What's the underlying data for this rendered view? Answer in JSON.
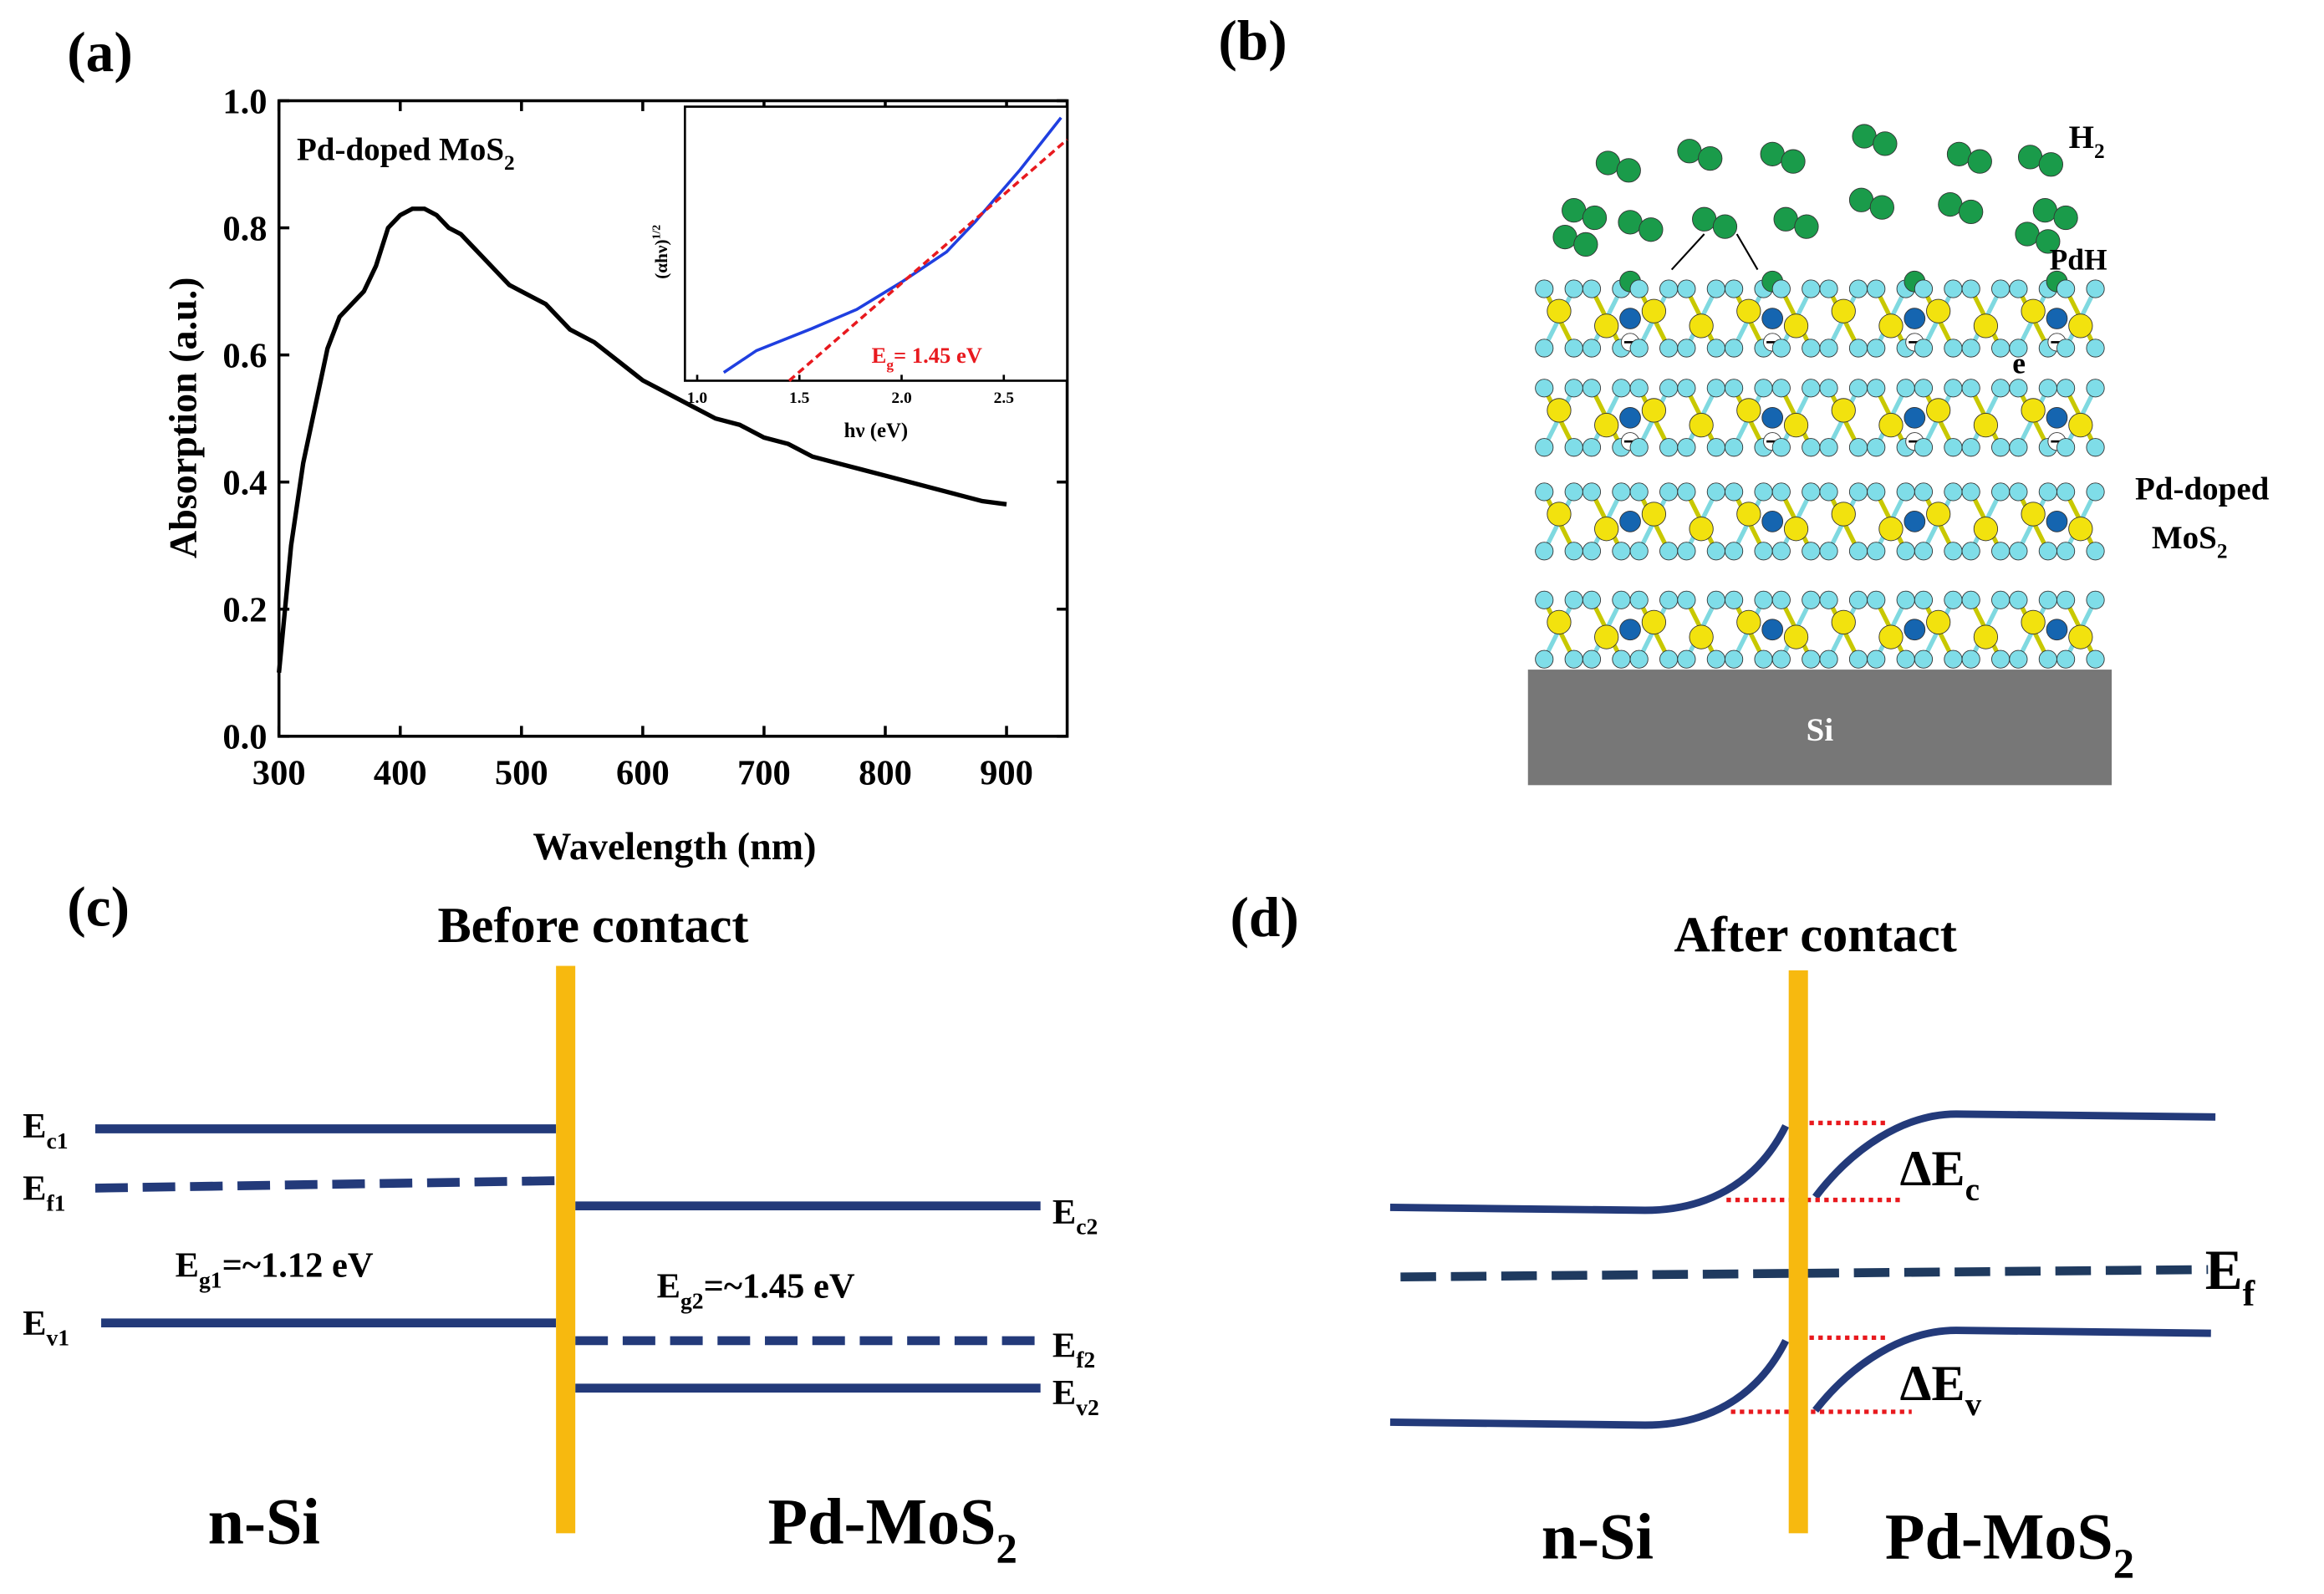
{
  "chart_data": [
    {
      "type": "line",
      "annotation": {
        "main": "Pd-doped MoS",
        "sub": "2"
      },
      "xlabel": "Wavelength (nm)",
      "ylabel": "Absorption (a.u.)",
      "xlim": [
        300,
        950
      ],
      "ylim": [
        0,
        1.0
      ],
      "xticks": [
        300,
        400,
        500,
        600,
        700,
        800,
        900
      ],
      "yticks": [
        {
          "value": 0,
          "label": "0.0"
        },
        0.2,
        0.4,
        0.6,
        0.8,
        {
          "value": 1,
          "label": "1.0"
        }
      ],
      "series": [
        {
          "color": "#000000",
          "x": [
            300,
            310,
            320,
            330,
            340,
            350,
            360,
            370,
            380,
            390,
            400,
            410,
            420,
            430,
            440,
            450,
            460,
            470,
            480,
            490,
            500,
            520,
            540,
            560,
            580,
            600,
            620,
            640,
            660,
            680,
            700,
            720,
            740,
            760,
            780,
            800,
            820,
            840,
            860,
            880,
            900
          ],
          "values": [
            0.1,
            0.3,
            0.43,
            0.52,
            0.61,
            0.66,
            0.68,
            0.7,
            0.74,
            0.8,
            0.82,
            0.83,
            0.83,
            0.82,
            0.8,
            0.79,
            0.77,
            0.75,
            0.73,
            0.71,
            0.7,
            0.68,
            0.64,
            0.62,
            0.59,
            0.56,
            0.54,
            0.52,
            0.5,
            0.49,
            0.47,
            0.46,
            0.44,
            0.43,
            0.42,
            0.41,
            0.4,
            0.39,
            0.38,
            0.37,
            0.365
          ]
        }
      ]
    },
    {
      "type": "line",
      "xlabel": "hν (eV)",
      "ylabel": {
        "main": "(αhν)",
        "sup": "1/2"
      },
      "annotation": {
        "main": "E",
        "sub": "g",
        "rest": "= 1.45 eV"
      },
      "xlim": [
        0.94,
        2.81
      ],
      "ylim": [
        0,
        1
      ],
      "xticks": [
        {
          "value": 1,
          "label": "1.0"
        },
        1.5,
        {
          "value": 2,
          "label": "2.0"
        },
        2.5
      ],
      "series": [
        {
          "color": "#1f3fe0",
          "x": [
            1.13,
            1.29,
            1.56,
            1.78,
            2.0,
            2.22,
            2.36,
            2.58,
            2.78
          ],
          "values": [
            0.03,
            0.11,
            0.19,
            0.26,
            0.36,
            0.47,
            0.58,
            0.77,
            0.96
          ]
        },
        {
          "color": "#e8191e",
          "line_style": "dashed",
          "x": [
            1.45,
            2.81
          ],
          "values": [
            0,
            0.88
          ]
        }
      ]
    }
  ],
  "panel_labels": [
    "(a)",
    "(b)",
    "(c)",
    "(d)"
  ],
  "diagram_b": {
    "molecule": {
      "main": "H",
      "sub": "2"
    },
    "adsorbed": "PdH",
    "electron": "e",
    "layer_label": [
      "Pd-doped",
      {
        "main": "MoS",
        "sub": "2"
      }
    ],
    "substrate": "Si"
  },
  "diagram_c": {
    "title": "Before contact",
    "levels": [
      {
        "main": "E",
        "sub": "c1"
      },
      {
        "main": "E",
        "sub": "f1"
      },
      {
        "main": "E",
        "sub": "v1"
      },
      {
        "main": "E",
        "sub": "c2"
      },
      {
        "main": "E",
        "sub": "f2"
      },
      {
        "main": "E",
        "sub": "v2"
      }
    ],
    "gaps": [
      {
        "main": "E",
        "sub": "g1",
        "rest": "=~1.12 eV"
      },
      {
        "main": "E",
        "sub": "g2",
        "rest": "=~1.45 eV"
      }
    ],
    "materials": [
      "n-Si",
      {
        "main": "Pd-MoS",
        "sub": "2"
      }
    ]
  },
  "diagram_d": {
    "title": "After contact",
    "levels": [
      {
        "main": "ΔE",
        "sub": "c"
      },
      {
        "main": "E",
        "sub": "f"
      },
      {
        "main": "ΔE",
        "sub": "v"
      }
    ],
    "materials": [
      "n-Si",
      {
        "main": "Pd-MoS",
        "sub": "2"
      }
    ]
  }
}
